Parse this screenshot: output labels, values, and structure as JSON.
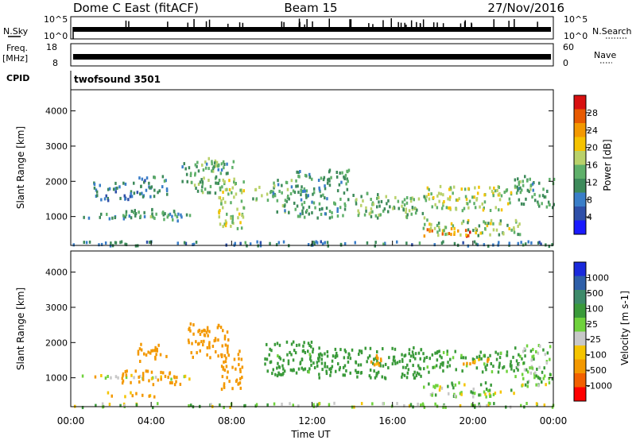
{
  "header": {
    "station": "Dome C East (fitACF)",
    "beam": "Beam 15",
    "date": "27/Nov/2016"
  },
  "top_panels": {
    "nsky_label": "N.Sky",
    "nsky_ticks": [
      "10^5",
      "10^0"
    ],
    "nsearch_label": "N.Search",
    "nsearch_ticks": [
      "10^5",
      "10^0"
    ],
    "freq_label_top": "Freq.",
    "freq_label_unit": "[MHz]",
    "freq_ticks": [
      "18",
      "8"
    ],
    "nave_label": "Nave",
    "nave_ticks": [
      "60",
      "0"
    ],
    "cpid_label": "CPID",
    "cpid_value": "twofsound 3501"
  },
  "x_axis": {
    "label": "Time UT",
    "ticks": [
      "00:00",
      "04:00",
      "08:00",
      "12:00",
      "16:00",
      "20:00",
      "00:00"
    ]
  },
  "power_colorbar": {
    "label": "Power [dB]",
    "ticks": [
      "28",
      "24",
      "20",
      "16",
      "12",
      "8",
      "4"
    ]
  },
  "velocity_colorbar": {
    "label": "Velocity [m s-1]",
    "ticks": [
      "1000",
      "500",
      "100",
      "25",
      "-25",
      "-100",
      "-500",
      "-1000"
    ]
  },
  "chart_data": [
    {
      "type": "heatmap",
      "title": "Power",
      "xlabel": "Time UT",
      "ylabel": "Slant Range [km]",
      "xlim": [
        0,
        24
      ],
      "ylim": [
        180,
        4600
      ],
      "y_ticks": [
        1000,
        2000,
        3000,
        4000
      ],
      "colorbar": {
        "label": "Power [dB]",
        "range": [
          0,
          32
        ]
      },
      "colors": [
        "#1a1aff",
        "#2e4fa8",
        "#3a7ec8",
        "#3d8a5a",
        "#5fb06a",
        "#b9d16a",
        "#f5c200",
        "#f39800",
        "#e85a00",
        "#d81010"
      ],
      "regions": [
        {
          "t": [
            0.1,
            5.9
          ],
          "r": [
            980,
            1140
          ],
          "level": 11
        },
        {
          "t": [
            2.5,
            4.1
          ],
          "r": [
            950,
            1250
          ],
          "level": 14
        },
        {
          "t": [
            4.3,
            5.4
          ],
          "r": [
            850,
            1200
          ],
          "level": 12
        },
        {
          "t": [
            1.0,
            3.5
          ],
          "r": [
            1500,
            2000
          ],
          "level": 9
        },
        {
          "t": [
            3.3,
            4.8
          ],
          "r": [
            1600,
            2200
          ],
          "level": 10
        },
        {
          "t": [
            5.5,
            7.8
          ],
          "r": [
            1700,
            2600
          ],
          "level": 13
        },
        {
          "t": [
            7.3,
            8.6
          ],
          "r": [
            700,
            2200
          ],
          "level": 17
        },
        {
          "t": [
            9.0,
            10.1
          ],
          "r": [
            1500,
            1900
          ],
          "level": 15
        },
        {
          "t": [
            10.0,
            11.2
          ],
          "r": [
            1100,
            2100
          ],
          "level": 13
        },
        {
          "t": [
            11.2,
            13.8
          ],
          "r": [
            1000,
            2400
          ],
          "level": 12
        },
        {
          "t": [
            14.0,
            17.6
          ],
          "r": [
            1000,
            1700
          ],
          "level": 14
        },
        {
          "t": [
            17.6,
            22.0
          ],
          "r": [
            1200,
            1900
          ],
          "level": 17
        },
        {
          "t": [
            22.0,
            24.0
          ],
          "r": [
            1300,
            2200
          ],
          "level": 13
        },
        {
          "t": [
            17.5,
            20.2
          ],
          "r": [
            480,
            700
          ],
          "level": 25
        },
        {
          "t": [
            17.5,
            22.3
          ],
          "r": [
            500,
            950
          ],
          "level": 16
        },
        {
          "t": [
            0.0,
            24.0
          ],
          "r": [
            200,
            330
          ],
          "level": 9
        },
        {
          "t": [
            6.8,
            8.1
          ],
          "r": [
            2400,
            2700
          ],
          "level": 14
        }
      ]
    },
    {
      "type": "heatmap",
      "title": "Velocity",
      "xlabel": "Time UT",
      "ylabel": "Slant Range [km]",
      "xlim": [
        0,
        24
      ],
      "ylim": [
        180,
        4600
      ],
      "y_ticks": [
        1000,
        2000,
        3000,
        4000
      ],
      "colorbar": {
        "label": "Velocity [m s-1]",
        "range": [
          -1000,
          1000
        ]
      },
      "colors": [
        "#ff0000",
        "#f26000",
        "#f39800",
        "#f5c400",
        "#c8c8c8",
        "#6fd23c",
        "#3a9a3a",
        "#3d8a6a",
        "#2e5fa8",
        "#1a2adc"
      ],
      "regions": [
        {
          "t": [
            0.1,
            5.9
          ],
          "r": [
            1000,
            1120
          ],
          "vel": 0
        },
        {
          "t": [
            2.5,
            4.1
          ],
          "r": [
            850,
            1250
          ],
          "vel": -300
        },
        {
          "t": [
            4.2,
            5.4
          ],
          "r": [
            800,
            1200
          ],
          "vel": -300
        },
        {
          "t": [
            3.3,
            4.8
          ],
          "r": [
            1500,
            2000
          ],
          "vel": -250
        },
        {
          "t": [
            5.8,
            7.8
          ],
          "r": [
            1600,
            2600
          ],
          "vel": -300
        },
        {
          "t": [
            7.4,
            8.5
          ],
          "r": [
            700,
            1800
          ],
          "vel": -350
        },
        {
          "t": [
            9.5,
            12.0
          ],
          "r": [
            1100,
            2100
          ],
          "vel": 200
        },
        {
          "t": [
            12.0,
            17.5
          ],
          "r": [
            1000,
            1900
          ],
          "vel": 250
        },
        {
          "t": [
            17.5,
            22.0
          ],
          "r": [
            1200,
            1800
          ],
          "vel": 200
        },
        {
          "t": [
            17.5,
            21.0
          ],
          "r": [
            500,
            900
          ],
          "vel": 60
        },
        {
          "t": [
            20.5,
            22.0
          ],
          "r": [
            500,
            700
          ],
          "vel": 0
        },
        {
          "t": [
            22.0,
            24.0
          ],
          "r": [
            800,
            2000
          ],
          "vel": 80
        },
        {
          "t": [
            0.0,
            24.0
          ],
          "r": [
            200,
            320
          ],
          "vel": 60
        },
        {
          "t": [
            1.8,
            4.2
          ],
          "r": [
            500,
            620
          ],
          "vel": -150
        },
        {
          "t": [
            14.8,
            15.6
          ],
          "r": [
            1400,
            1700
          ],
          "vel": -150
        },
        {
          "t": [
            19.2,
            20.8
          ],
          "r": [
            1400,
            1600
          ],
          "vel": -180
        }
      ]
    }
  ]
}
